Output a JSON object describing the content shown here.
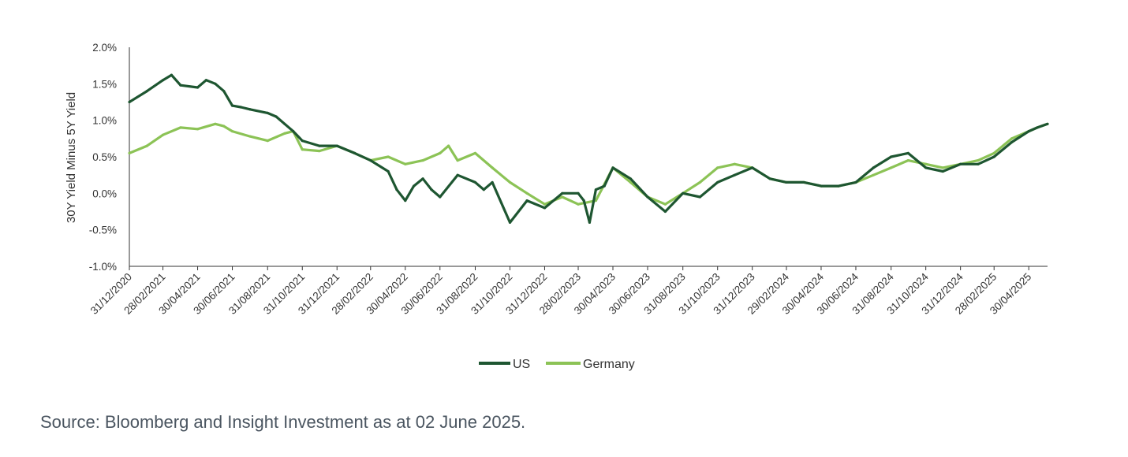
{
  "source": "Source: Bloomberg and Insight Investment as at 02 June 2025.",
  "chart_data": {
    "type": "line",
    "ylabel": "30Y Yield Minus 5Y Yield",
    "ylim": [
      -1.0,
      2.0
    ],
    "yticks": [
      2.0,
      1.5,
      1.0,
      0.5,
      0.0,
      -0.5,
      -1.0
    ],
    "ytick_labels": [
      "2.0%",
      "1.5%",
      "1.0%",
      "0.5%",
      "0.0%",
      "-0.5%",
      "-1.0%"
    ],
    "xlim": [
      "31/12/2020",
      "02/06/2025"
    ],
    "xticks": [
      "31/12/2020",
      "28/02/2021",
      "30/04/2021",
      "30/06/2021",
      "31/08/2021",
      "31/10/2021",
      "31/12/2021",
      "28/02/2022",
      "30/04/2022",
      "30/06/2022",
      "31/08/2022",
      "31/10/2022",
      "31/12/2022",
      "28/02/2023",
      "30/04/2023",
      "30/06/2023",
      "31/08/2023",
      "31/10/2023",
      "31/12/2023",
      "29/02/2024",
      "30/04/2024",
      "30/06/2024",
      "31/08/2024",
      "31/10/2024",
      "31/12/2024",
      "28/02/2025",
      "30/04/2025"
    ],
    "grid": false,
    "legend_position": "bottom",
    "series": [
      {
        "name": "US",
        "color": "#1e5631",
        "x": [
          "31/12/2020",
          "31/01/2021",
          "28/02/2021",
          "15/03/2021",
          "31/03/2021",
          "30/04/2021",
          "15/05/2021",
          "31/05/2021",
          "15/06/2021",
          "30/06/2021",
          "15/07/2021",
          "31/07/2021",
          "31/08/2021",
          "15/09/2021",
          "30/09/2021",
          "15/10/2021",
          "31/10/2021",
          "30/11/2021",
          "31/12/2021",
          "31/01/2022",
          "28/02/2022",
          "31/03/2022",
          "15/04/2022",
          "30/04/2022",
          "15/05/2022",
          "31/05/2022",
          "15/06/2022",
          "30/06/2022",
          "31/07/2022",
          "31/08/2022",
          "15/09/2022",
          "30/09/2022",
          "31/10/2022",
          "30/11/2022",
          "31/12/2022",
          "31/01/2023",
          "28/02/2023",
          "10/03/2023",
          "20/03/2023",
          "31/03/2023",
          "15/04/2023",
          "30/04/2023",
          "31/05/2023",
          "30/06/2023",
          "31/07/2023",
          "31/08/2023",
          "30/09/2023",
          "31/10/2023",
          "30/11/2023",
          "31/12/2023",
          "31/01/2024",
          "29/02/2024",
          "31/03/2024",
          "30/04/2024",
          "31/05/2024",
          "30/06/2024",
          "31/07/2024",
          "31/08/2024",
          "30/09/2024",
          "31/10/2024",
          "30/11/2024",
          "31/12/2024",
          "31/01/2025",
          "28/02/2025",
          "31/03/2025",
          "30/04/2025",
          "15/05/2025",
          "02/06/2025"
        ],
        "values": [
          1.25,
          1.4,
          1.55,
          1.62,
          1.48,
          1.45,
          1.55,
          1.5,
          1.4,
          1.2,
          1.18,
          1.15,
          1.1,
          1.05,
          0.95,
          0.85,
          0.72,
          0.65,
          0.65,
          0.55,
          0.45,
          0.3,
          0.05,
          -0.1,
          0.1,
          0.2,
          0.05,
          -0.05,
          0.25,
          0.15,
          0.05,
          0.15,
          -0.4,
          -0.1,
          -0.2,
          0.0,
          0.0,
          -0.1,
          -0.4,
          0.05,
          0.1,
          0.35,
          0.2,
          -0.05,
          -0.25,
          0.0,
          -0.05,
          0.15,
          0.25,
          0.35,
          0.2,
          0.15,
          0.15,
          0.1,
          0.1,
          0.15,
          0.35,
          0.5,
          0.55,
          0.35,
          0.3,
          0.4,
          0.4,
          0.5,
          0.7,
          0.85,
          0.9,
          0.95
        ]
      },
      {
        "name": "Germany",
        "color": "#8cc356",
        "x": [
          "31/12/2020",
          "31/01/2021",
          "28/02/2021",
          "31/03/2021",
          "30/04/2021",
          "31/05/2021",
          "15/06/2021",
          "30/06/2021",
          "31/07/2021",
          "31/08/2021",
          "30/09/2021",
          "15/10/2021",
          "31/10/2021",
          "30/11/2021",
          "31/12/2021",
          "31/01/2022",
          "28/02/2022",
          "31/03/2022",
          "30/04/2022",
          "31/05/2022",
          "30/06/2022",
          "15/07/2022",
          "31/07/2022",
          "31/08/2022",
          "30/09/2022",
          "31/10/2022",
          "30/11/2022",
          "31/12/2022",
          "31/01/2023",
          "28/02/2023",
          "31/03/2023",
          "30/04/2023",
          "31/05/2023",
          "30/06/2023",
          "31/07/2023",
          "31/08/2023",
          "30/09/2023",
          "31/10/2023",
          "30/11/2023",
          "31/12/2023",
          "31/01/2024",
          "29/02/2024",
          "31/03/2024",
          "30/04/2024",
          "31/05/2024",
          "30/06/2024",
          "31/07/2024",
          "31/08/2024",
          "30/09/2024",
          "31/10/2024",
          "30/11/2024",
          "31/12/2024",
          "31/01/2025",
          "28/02/2025",
          "31/03/2025",
          "30/04/2025",
          "15/05/2025",
          "02/06/2025"
        ],
        "values": [
          0.55,
          0.65,
          0.8,
          0.9,
          0.88,
          0.95,
          0.92,
          0.85,
          0.78,
          0.72,
          0.82,
          0.85,
          0.6,
          0.58,
          0.65,
          0.55,
          0.45,
          0.5,
          0.4,
          0.45,
          0.55,
          0.65,
          0.45,
          0.55,
          0.35,
          0.15,
          0.0,
          -0.15,
          -0.05,
          -0.15,
          -0.1,
          0.35,
          0.15,
          -0.05,
          -0.15,
          0.0,
          0.15,
          0.35,
          0.4,
          0.35,
          0.2,
          0.15,
          0.15,
          0.1,
          0.1,
          0.15,
          0.25,
          0.35,
          0.45,
          0.4,
          0.35,
          0.4,
          0.45,
          0.55,
          0.75,
          0.85,
          0.9,
          0.95
        ]
      }
    ]
  }
}
